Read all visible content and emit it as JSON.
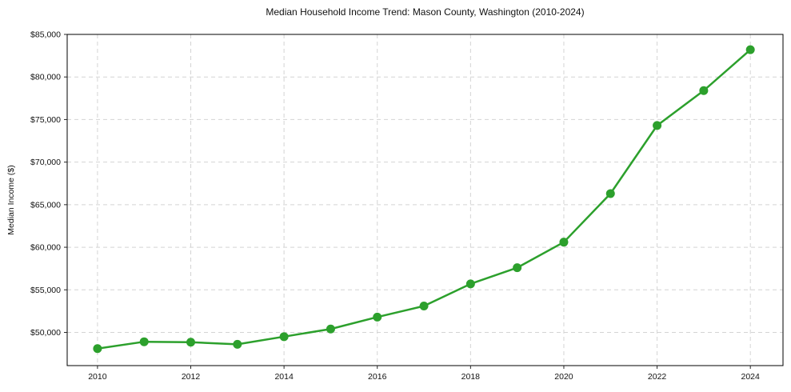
{
  "figure": {
    "title": "Median Household Income Trend: Mason County, Washington (2010-2024)"
  },
  "chart_data": {
    "type": "line",
    "title": "Median Household Income Trend: Mason County, Washington (2010-2024)",
    "xlabel": "",
    "ylabel": "Median Income ($)",
    "x": [
      2010,
      2011,
      2012,
      2013,
      2014,
      2015,
      2016,
      2017,
      2018,
      2019,
      2020,
      2021,
      2022,
      2023,
      2024
    ],
    "values": [
      48100,
      48900,
      48850,
      48600,
      49500,
      50400,
      51800,
      53100,
      55700,
      57600,
      60600,
      66300,
      74300,
      78400,
      83200
    ],
    "x_ticks": [
      2010,
      2012,
      2014,
      2016,
      2018,
      2020,
      2022,
      2024
    ],
    "x_tick_labels": [
      "2010",
      "2012",
      "2014",
      "2016",
      "2018",
      "2020",
      "2022",
      "2024"
    ],
    "y_ticks": [
      50000,
      55000,
      60000,
      65000,
      70000,
      75000,
      80000,
      85000
    ],
    "y_tick_labels": [
      "$50,000",
      "$55,000",
      "$60,000",
      "$65,000",
      "$70,000",
      "$75,000",
      "$80,000",
      "$85,000"
    ],
    "xlim": [
      2009.35,
      2024.7
    ],
    "ylim": [
      46100,
      85000
    ],
    "grid": true,
    "grid_style": "dashed",
    "legend": "none",
    "line_color": "#2ca02c",
    "marker": "o",
    "marker_color": "#2ca02c",
    "background_color": "#ffffff",
    "grid_color": "#d4d4d4",
    "spine_color": "#000000",
    "tick_color": "#262626",
    "text_color": "#111111"
  }
}
